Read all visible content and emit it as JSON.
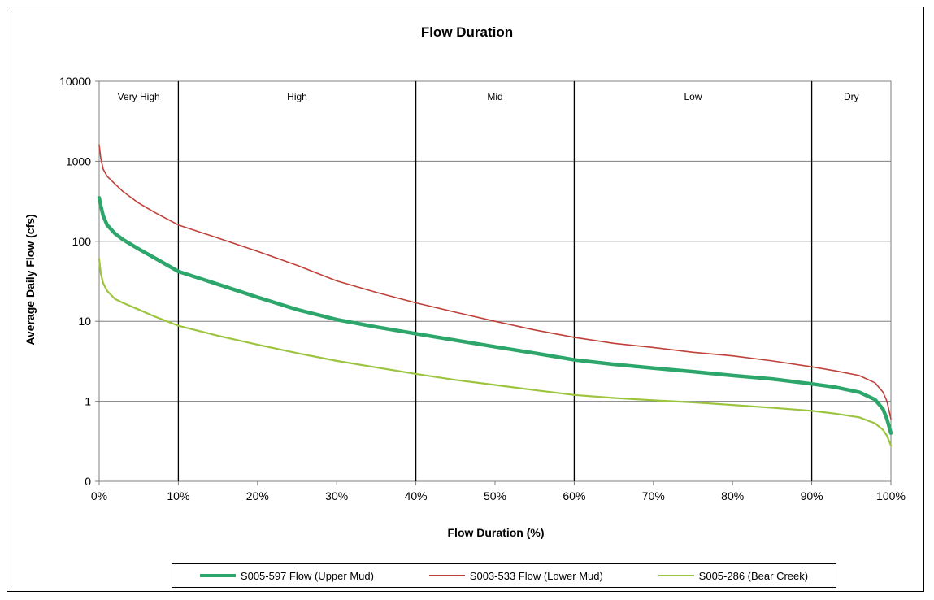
{
  "chart_data": {
    "type": "line",
    "title": "Flow Duration",
    "xlabel": "Flow Duration (%)",
    "ylabel": "Average Daily Flow (cfs)",
    "xlim": [
      0,
      100
    ],
    "ylim": [
      0.1,
      10000
    ],
    "yscale": "log",
    "grid": true,
    "legend_position": "bottom",
    "x_ticks": [
      "0%",
      "10%",
      "20%",
      "30%",
      "40%",
      "50%",
      "60%",
      "70%",
      "80%",
      "90%",
      "100%"
    ],
    "y_ticks": [
      {
        "value": 0.1,
        "label": "0"
      },
      {
        "value": 1,
        "label": "1"
      },
      {
        "value": 10,
        "label": "10"
      },
      {
        "value": 100,
        "label": "100"
      },
      {
        "value": 1000,
        "label": "1000"
      },
      {
        "value": 10000,
        "label": "10000"
      }
    ],
    "zones": [
      {
        "label": "Very High",
        "start": 0,
        "end": 10
      },
      {
        "label": "High",
        "start": 10,
        "end": 40
      },
      {
        "label": "Mid",
        "start": 40,
        "end": 60
      },
      {
        "label": "Low",
        "start": 60,
        "end": 90
      },
      {
        "label": "Dry",
        "start": 90,
        "end": 100
      }
    ],
    "series": [
      {
        "name": "S005-597 Flow (Upper Mud)",
        "color": "#2ca66a",
        "x": [
          0,
          0.2,
          0.5,
          1,
          2,
          3,
          5,
          7,
          10,
          15,
          20,
          25,
          30,
          35,
          40,
          45,
          50,
          55,
          60,
          65,
          70,
          75,
          80,
          85,
          90,
          93,
          96,
          98,
          99,
          99.5,
          100
        ],
        "y": [
          350,
          280,
          210,
          160,
          125,
          105,
          80,
          62,
          42,
          29,
          20,
          14,
          10.5,
          8.5,
          7,
          5.8,
          4.8,
          4,
          3.3,
          2.9,
          2.6,
          2.35,
          2.1,
          1.9,
          1.65,
          1.5,
          1.3,
          1.05,
          0.8,
          0.6,
          0.4
        ]
      },
      {
        "name": "S003-533 Flow (Lower Mud)",
        "color": "#c0403a",
        "x": [
          0,
          0.2,
          0.5,
          1,
          2,
          3,
          5,
          7,
          10,
          15,
          20,
          25,
          30,
          35,
          40,
          45,
          50,
          55,
          60,
          65,
          70,
          75,
          80,
          85,
          90,
          93,
          96,
          98,
          99,
          99.5,
          100
        ],
        "y": [
          1600,
          1100,
          800,
          650,
          520,
          420,
          300,
          230,
          160,
          110,
          75,
          50,
          32,
          23,
          17,
          13,
          10,
          7.8,
          6.3,
          5.3,
          4.7,
          4.1,
          3.7,
          3.2,
          2.7,
          2.4,
          2.1,
          1.7,
          1.3,
          1,
          0.6
        ]
      },
      {
        "name": "S005-286 (Bear Creek)",
        "color": "#9dc43e",
        "x": [
          0,
          0.2,
          0.5,
          1,
          2,
          3,
          5,
          7,
          10,
          15,
          20,
          25,
          30,
          35,
          40,
          45,
          50,
          55,
          60,
          65,
          70,
          75,
          80,
          85,
          90,
          93,
          96,
          98,
          99,
          99.5,
          100
        ],
        "y": [
          60,
          40,
          30,
          24,
          19,
          17,
          14,
          11.5,
          8.8,
          6.6,
          5.1,
          4,
          3.2,
          2.65,
          2.2,
          1.85,
          1.6,
          1.38,
          1.2,
          1.1,
          1.03,
          0.97,
          0.9,
          0.83,
          0.76,
          0.7,
          0.63,
          0.53,
          0.44,
          0.37,
          0.28
        ]
      }
    ]
  }
}
